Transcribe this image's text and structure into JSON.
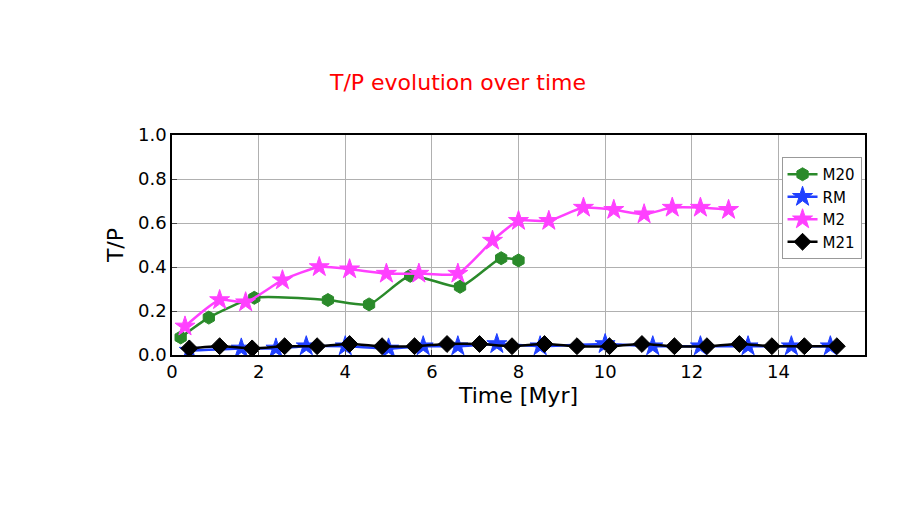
{
  "chart_data": {
    "type": "line",
    "title": "T/P evolution over time",
    "x_label": "Time [Myr]",
    "y_label": "T/P",
    "xlim": [
      0,
      16
    ],
    "xticks": [
      0,
      2,
      4,
      6,
      8,
      10,
      12,
      14
    ],
    "ylim": [
      0,
      1
    ],
    "yticks": [
      {
        "value": 0,
        "label": "0.0"
      },
      {
        "value": 0.2,
        "label": "0.2"
      },
      {
        "value": 0.4,
        "label": "0.4"
      },
      {
        "value": 0.6,
        "label": "0.6"
      },
      {
        "value": 0.8,
        "label": "0.8"
      },
      {
        "value": 1,
        "label": "1.0"
      }
    ],
    "grid": true,
    "legend": "upper right",
    "series": [
      {
        "name": "M20",
        "color": "#2a8a2a",
        "marker": "hexagon",
        "x": [
          0.2,
          0.85,
          1.9,
          3.6,
          4.55,
          5.5,
          6.65,
          7.6,
          8.0
        ],
        "values": [
          0.08,
          0.17,
          0.26,
          0.25,
          0.23,
          0.36,
          0.31,
          0.44,
          0.43
        ]
      },
      {
        "name": "RM",
        "color": "#2040ff",
        "marker": "star",
        "x": [
          0.4,
          1.6,
          2.4,
          3.1,
          4.0,
          5.0,
          5.8,
          6.6,
          7.5,
          8.5,
          10.0,
          11.1,
          12.2,
          13.3,
          14.3,
          15.2
        ],
        "values": [
          0.02,
          0.03,
          0.03,
          0.04,
          0.04,
          0.03,
          0.04,
          0.04,
          0.05,
          0.04,
          0.05,
          0.04,
          0.04,
          0.04,
          0.04,
          0.04
        ]
      },
      {
        "name": "M2",
        "color": "#ff40ff",
        "marker": "star",
        "x": [
          0.3,
          1.1,
          1.7,
          2.55,
          3.4,
          4.1,
          4.95,
          5.7,
          6.6,
          7.4,
          8.0,
          8.7,
          9.5,
          10.2,
          10.9,
          11.55,
          12.2,
          12.85
        ],
        "values": [
          0.13,
          0.25,
          0.24,
          0.34,
          0.4,
          0.39,
          0.37,
          0.37,
          0.37,
          0.52,
          0.61,
          0.61,
          0.67,
          0.66,
          0.64,
          0.67,
          0.67,
          0.66
        ]
      },
      {
        "name": "M21",
        "color": "#000000",
        "marker": "diamond",
        "x": [
          0.4,
          1.1,
          1.85,
          2.6,
          3.35,
          4.1,
          4.85,
          5.6,
          6.35,
          7.1,
          7.85,
          8.6,
          9.35,
          10.1,
          10.85,
          11.6,
          12.35,
          13.1,
          13.85,
          14.6,
          15.35
        ],
        "values": [
          0.03,
          0.04,
          0.03,
          0.04,
          0.04,
          0.05,
          0.04,
          0.04,
          0.05,
          0.05,
          0.04,
          0.05,
          0.04,
          0.04,
          0.05,
          0.04,
          0.04,
          0.05,
          0.04,
          0.04,
          0.04
        ]
      }
    ]
  }
}
